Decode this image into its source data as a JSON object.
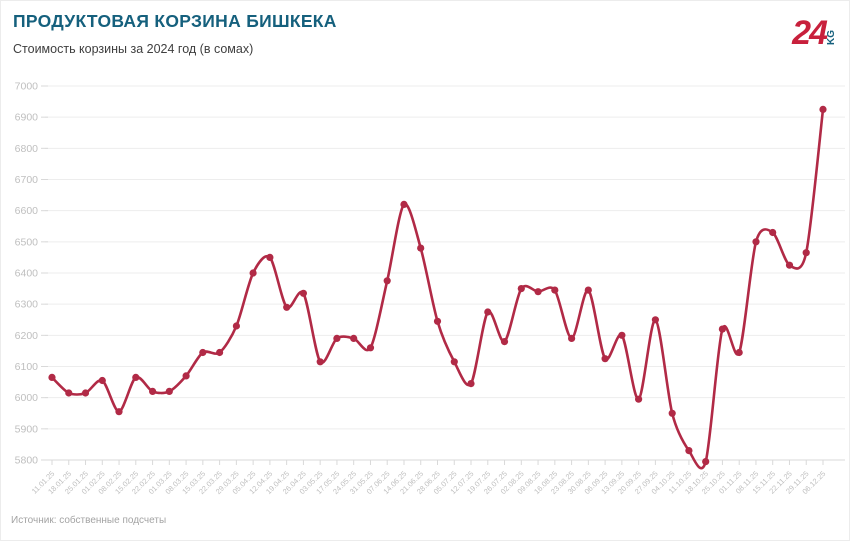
{
  "header": {
    "title": "ПРОДУКТОВАЯ КОРЗИНА БИШКЕКА",
    "subtitle": "Стоимость корзины за 2024 год (в сомах)"
  },
  "logo": {
    "number": "24",
    "suffix": "KG",
    "number_color": "#c8203c",
    "suffix_color": "#15607d"
  },
  "footer": {
    "source": "Источник: собственные подсчеты"
  },
  "chart_data": {
    "type": "line",
    "title": "ПРОДУКТОВАЯ КОРЗИНА БИШКЕКА",
    "subtitle": "Стоимость корзины за 2024 год (в сомах)",
    "xlabel": "",
    "ylabel": "",
    "ylim": [
      5800,
      7000
    ],
    "ytick_step": 100,
    "grid": true,
    "legend": "none",
    "line_color": "#b12a46",
    "point_color": "#b12a46",
    "gridline_color": "#ededed",
    "axis_line_color": "#d9d9d9",
    "tick_label_color": "#bfbfbf",
    "categories": [
      "11.01.25",
      "18.01.25",
      "25.01.25",
      "01.02.25",
      "08.02.25",
      "15.02.25",
      "22.02.25",
      "01.03.25",
      "08.03.25",
      "15.03.25",
      "22.03.25",
      "29.03.25",
      "05.04.25",
      "12.04.25",
      "19.04.25",
      "26.04.25",
      "03.05.25",
      "17.05.25",
      "24.05.25",
      "31.05.25",
      "07.06.25",
      "14.06.25",
      "21.06.25",
      "28.06.25",
      "05.07.25",
      "12.07.25",
      "19.07.25",
      "26.07.25",
      "02.08.25",
      "09.08.25",
      "16.08.25",
      "23.08.25",
      "30.08.25",
      "06.09.25",
      "13.09.25",
      "20.09.25",
      "27.09.25",
      "04.10.25",
      "11.10.25",
      "18.10.25",
      "25.10.25",
      "01.11.25",
      "08.11.25",
      "15.11.25",
      "22.11.25",
      "29.11.25",
      "06.12.25"
    ],
    "values": [
      6065,
      6015,
      6015,
      6055,
      5955,
      6065,
      6020,
      6020,
      6070,
      6145,
      6145,
      6230,
      6400,
      6450,
      6290,
      6335,
      6115,
      6190,
      6190,
      6160,
      6375,
      6620,
      6480,
      6245,
      6115,
      6045,
      6275,
      6180,
      6350,
      6340,
      6345,
      6190,
      6345,
      6125,
      6200,
      5995,
      6250,
      5950,
      5830,
      5795,
      6220,
      6145,
      6500,
      6530,
      6425,
      6465,
      6925
    ]
  }
}
